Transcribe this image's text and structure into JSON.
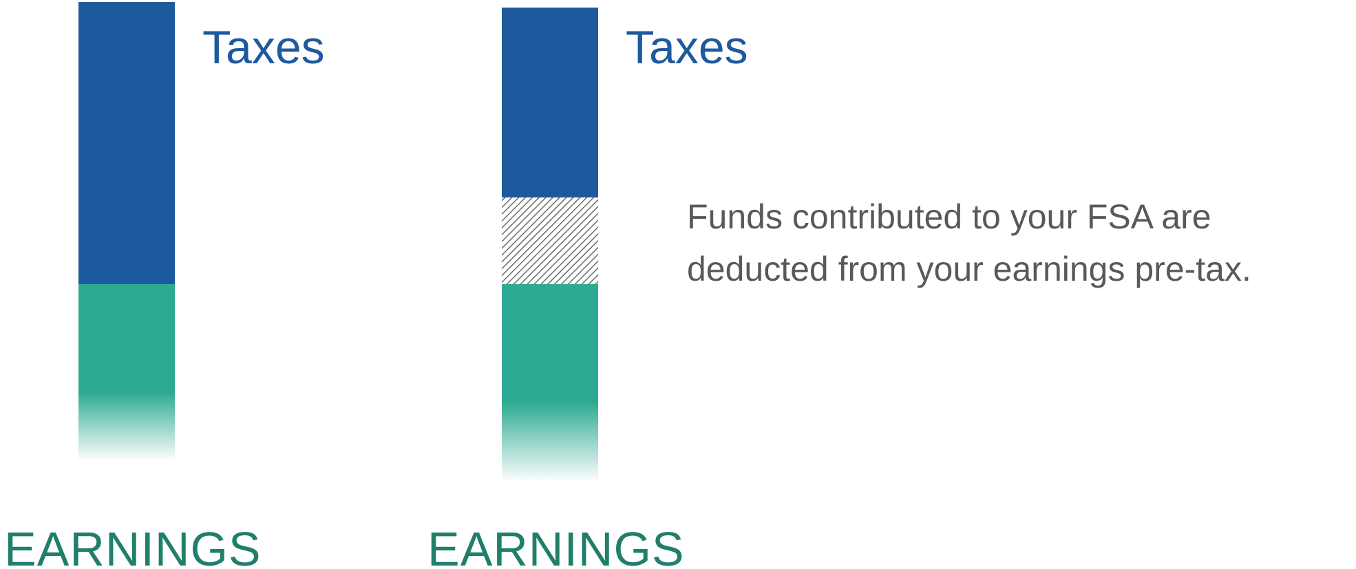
{
  "columns": [
    {
      "label": "Taxes",
      "footer": "EARNINGS"
    },
    {
      "label": "Taxes",
      "footer": "EARNINGS"
    }
  ],
  "note": {
    "lines": [
      "Funds contributed to your FSA are",
      "deducted from your earnings pre-tax."
    ]
  }
}
